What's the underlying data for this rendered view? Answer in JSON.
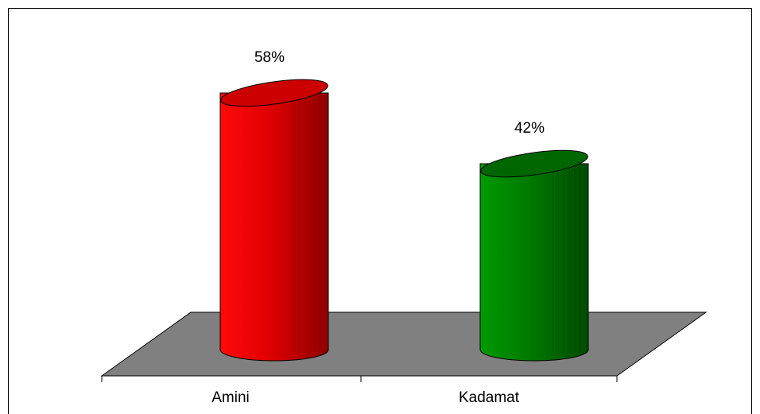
{
  "chart_data": {
    "type": "bar3d",
    "categories": [
      "Amini",
      "Kadamat"
    ],
    "values": [
      58,
      42
    ],
    "value_labels": [
      "58%",
      "42%"
    ],
    "colors": [
      "#ff0000",
      "#008000"
    ]
  }
}
